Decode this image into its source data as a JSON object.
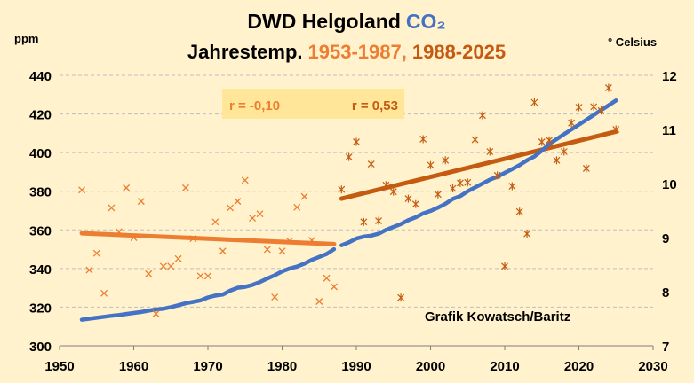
{
  "chart_data": {
    "type": "line",
    "title": {
      "line1": "DWD Helgoland",
      "line1_accent": "CO₂",
      "line2": "Jahrestemp.",
      "line2_accent1": "1953-1987,",
      "line2_accent2": "1988-2025"
    },
    "left_axis_label": "ppm",
    "right_axis_label": "° Celsius",
    "x_range": [
      1950,
      2030
    ],
    "x_ticks": [
      1950,
      1960,
      1970,
      1980,
      1990,
      2000,
      2010,
      2020,
      2030
    ],
    "y_left_range": [
      300,
      440
    ],
    "y_left_ticks": [
      300,
      320,
      340,
      360,
      380,
      400,
      420,
      440
    ],
    "y_right_range": [
      7,
      12
    ],
    "y_right_ticks": [
      7,
      8,
      9,
      10,
      11,
      12
    ],
    "grid": "horizontal dashed",
    "annotations": {
      "r_early": "r = -0,10",
      "r_late": "r = 0,53",
      "credit": "Grafik Kowatsch/Baritz"
    },
    "colors": {
      "background": "#FFF2CC",
      "co2": "#4472C4",
      "early": "#ED7D31",
      "late": "#C55A11",
      "r_box": "#FFE699",
      "grid": "#BFBFBF"
    },
    "co2_series": {
      "axis": "left",
      "x": [
        1953,
        1954,
        1955,
        1956,
        1957,
        1958,
        1959,
        1960,
        1961,
        1962,
        1963,
        1964,
        1965,
        1966,
        1967,
        1968,
        1969,
        1970,
        1971,
        1972,
        1973,
        1974,
        1975,
        1976,
        1977,
        1978,
        1979,
        1980,
        1981,
        1982,
        1983,
        1984,
        1985,
        1986,
        1987,
        1988,
        1989,
        1990,
        1991,
        1992,
        1993,
        1994,
        1995,
        1996,
        1997,
        1998,
        1999,
        2000,
        2001,
        2002,
        2003,
        2004,
        2005,
        2006,
        2007,
        2008,
        2009,
        2010,
        2011,
        2012,
        2013,
        2014,
        2015,
        2016,
        2017,
        2018,
        2019,
        2020,
        2021,
        2022,
        2023,
        2024,
        2025
      ],
      "y": [
        313.5,
        314.0,
        314.5,
        315.0,
        315.5,
        315.9,
        316.5,
        317.0,
        317.5,
        318.2,
        318.8,
        319.2,
        320.0,
        321.0,
        322.0,
        322.7,
        323.5,
        325.0,
        326.0,
        326.5,
        328.5,
        330.0,
        330.5,
        331.5,
        333.0,
        334.8,
        336.5,
        338.5,
        340.0,
        341.0,
        342.5,
        344.5,
        346.0,
        347.5,
        350.0,
        352.0,
        353.5,
        355.5,
        356.5,
        357.0,
        358.0,
        360.0,
        361.5,
        363.0,
        365.0,
        366.5,
        368.5,
        369.8,
        371.5,
        373.5,
        376.0,
        377.5,
        380.0,
        382.0,
        384.0,
        386.0,
        387.5,
        389.5,
        391.5,
        393.5,
        396.0,
        398.0,
        401.0,
        404.5,
        407.0,
        409.5,
        412.0,
        414.5,
        417.0,
        419.5,
        422.0,
        424.5,
        427.0
      ]
    },
    "temp_early": {
      "axis": "right",
      "name": "1953-1987",
      "x": [
        1953,
        1954,
        1955,
        1956,
        1957,
        1958,
        1959,
        1960,
        1961,
        1962,
        1963,
        1964,
        1965,
        1966,
        1967,
        1968,
        1969,
        1970,
        1971,
        1972,
        1973,
        1974,
        1975,
        1976,
        1977,
        1978,
        1979,
        1980,
        1981,
        1982,
        1983,
        1984,
        1985,
        1986,
        1987
      ],
      "y": [
        9.88,
        8.4,
        8.71,
        7.97,
        9.55,
        9.11,
        9.92,
        9.0,
        9.67,
        8.33,
        7.59,
        8.47,
        8.47,
        8.61,
        9.92,
        8.98,
        8.29,
        8.29,
        9.29,
        8.75,
        9.55,
        9.67,
        10.06,
        9.36,
        9.44,
        8.78,
        7.9,
        8.75,
        8.94,
        9.56,
        9.76,
        8.95,
        7.82,
        8.25,
        8.09
      ],
      "trend": {
        "x": [
          1953,
          1987
        ],
        "y": [
          9.08,
          8.88
        ]
      }
    },
    "temp_late": {
      "axis": "right",
      "name": "1988-2025",
      "x": [
        1988,
        1989,
        1990,
        1991,
        1992,
        1993,
        1994,
        1995,
        1996,
        1997,
        1998,
        1999,
        2000,
        2001,
        2002,
        2003,
        2004,
        2005,
        2006,
        2007,
        2008,
        2009,
        2010,
        2011,
        2012,
        2013,
        2014,
        2015,
        2016,
        2017,
        2018,
        2019,
        2020,
        2021,
        2022,
        2023,
        2024,
        2025
      ],
      "y": [
        9.89,
        10.49,
        10.77,
        9.29,
        10.36,
        9.31,
        9.97,
        9.85,
        7.89,
        9.72,
        9.62,
        10.82,
        10.34,
        9.8,
        10.43,
        9.91,
        10.01,
        10.02,
        10.81,
        11.26,
        10.59,
        10.15,
        8.47,
        9.95,
        9.48,
        9.07,
        11.5,
        10.77,
        10.8,
        10.43,
        10.59,
        11.12,
        11.41,
        10.28,
        11.42,
        11.35,
        11.77,
        11.0
      ],
      "trend": {
        "x": [
          1988,
          2025
        ],
        "y": [
          9.72,
          10.96
        ]
      }
    }
  }
}
